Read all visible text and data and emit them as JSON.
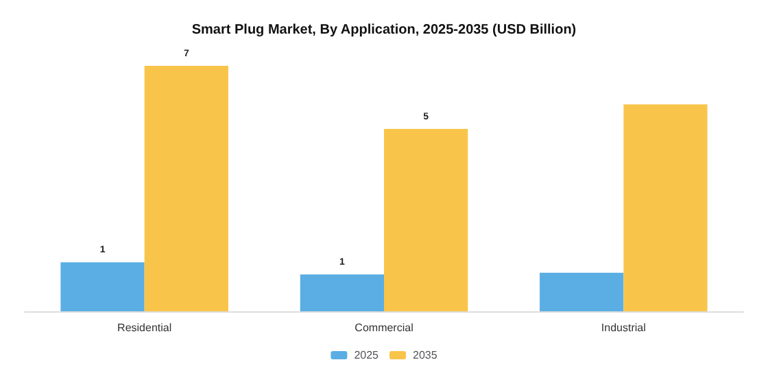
{
  "chart_data": {
    "type": "bar",
    "title": "Smart Plug Market, By Application, 2025-2035 (USD Billion)",
    "categories": [
      "Residential",
      "Commercial",
      "Industrial"
    ],
    "tick_labels": "x",
    "series": [
      {
        "name": "2025",
        "color": "#5aaee3",
        "values": [
          1.4,
          1.05,
          1.1
        ],
        "value_labels": [
          "1",
          "1",
          null
        ]
      },
      {
        "name": "2035",
        "color": "#f8c44a",
        "values": [
          7,
          5.2,
          5.9
        ],
        "value_labels": [
          "7",
          "5",
          null
        ]
      }
    ],
    "legend": "bottom"
  }
}
